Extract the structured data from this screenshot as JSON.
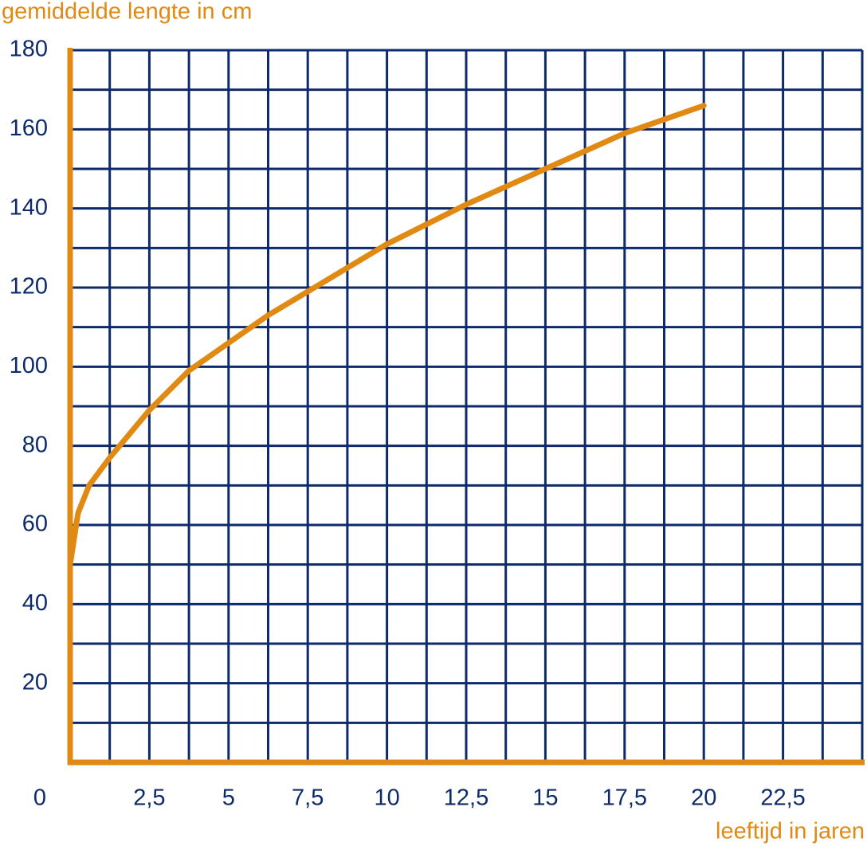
{
  "chart_data": {
    "type": "line",
    "y_axis_label": "gemiddelde lengte in cm",
    "x_axis_label": "leeftijd in jaren",
    "x": [
      0,
      0.25,
      0.6,
      1.25,
      2.5,
      3.75,
      5,
      6.25,
      7.5,
      10,
      12.5,
      15,
      17.5,
      20
    ],
    "series": [
      {
        "name": "gemiddelde lengte",
        "color": "#e08a14",
        "values": [
          50,
          63,
          70,
          77,
          89,
          99,
          106,
          113,
          119,
          131,
          141,
          150,
          159,
          166
        ]
      }
    ],
    "xlim": [
      0,
      25
    ],
    "xticks": [
      0,
      {
        "value": 2.5,
        "label": "2,5"
      },
      5,
      {
        "value": 7.5,
        "label": "7,5"
      },
      10,
      {
        "value": 12.5,
        "label": "12,5"
      },
      15,
      {
        "value": 17.5,
        "label": "17,5"
      },
      20,
      {
        "value": 22.5,
        "label": "22,5"
      }
    ],
    "ylim": [
      0,
      180
    ],
    "yticks": [
      20,
      40,
      60,
      80,
      100,
      120,
      140,
      160,
      180
    ],
    "grid": true,
    "grid_color": "#0d2a6b",
    "axis_color": "#e08a14"
  }
}
